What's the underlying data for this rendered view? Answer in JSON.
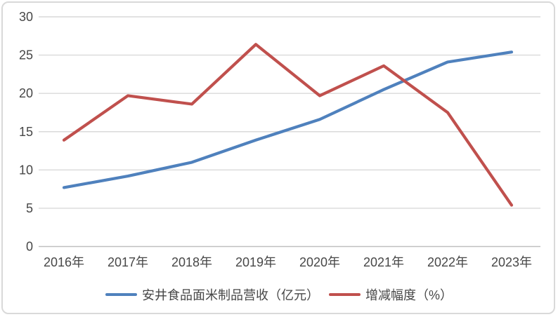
{
  "chart_data": {
    "type": "line",
    "title": "",
    "xlabel": "",
    "ylabel": "",
    "categories": [
      "2016年",
      "2017年",
      "2018年",
      "2019年",
      "2020年",
      "2021年",
      "2022年",
      "2023年"
    ],
    "series": [
      {
        "name": "安井食品面米制品营收（亿元）",
        "color": "#4F81BD",
        "values": [
          7.7,
          9.2,
          11.0,
          13.9,
          16.6,
          20.5,
          24.1,
          25.4
        ]
      },
      {
        "name": "增减幅度（%）",
        "color": "#C0504D",
        "values": [
          13.9,
          19.7,
          18.6,
          26.4,
          19.7,
          23.6,
          17.5,
          5.4
        ]
      }
    ],
    "ylim": [
      0,
      30
    ],
    "yticks": [
      0,
      5,
      10,
      15,
      20,
      25,
      30
    ],
    "grid": true,
    "legend_position": "bottom",
    "colors": {
      "gridline": "#D9D9D9",
      "axis_line": "#BFBFBF",
      "label_text": "#474747",
      "background": "#FFFFFF",
      "border": "#D9D9D9"
    }
  }
}
